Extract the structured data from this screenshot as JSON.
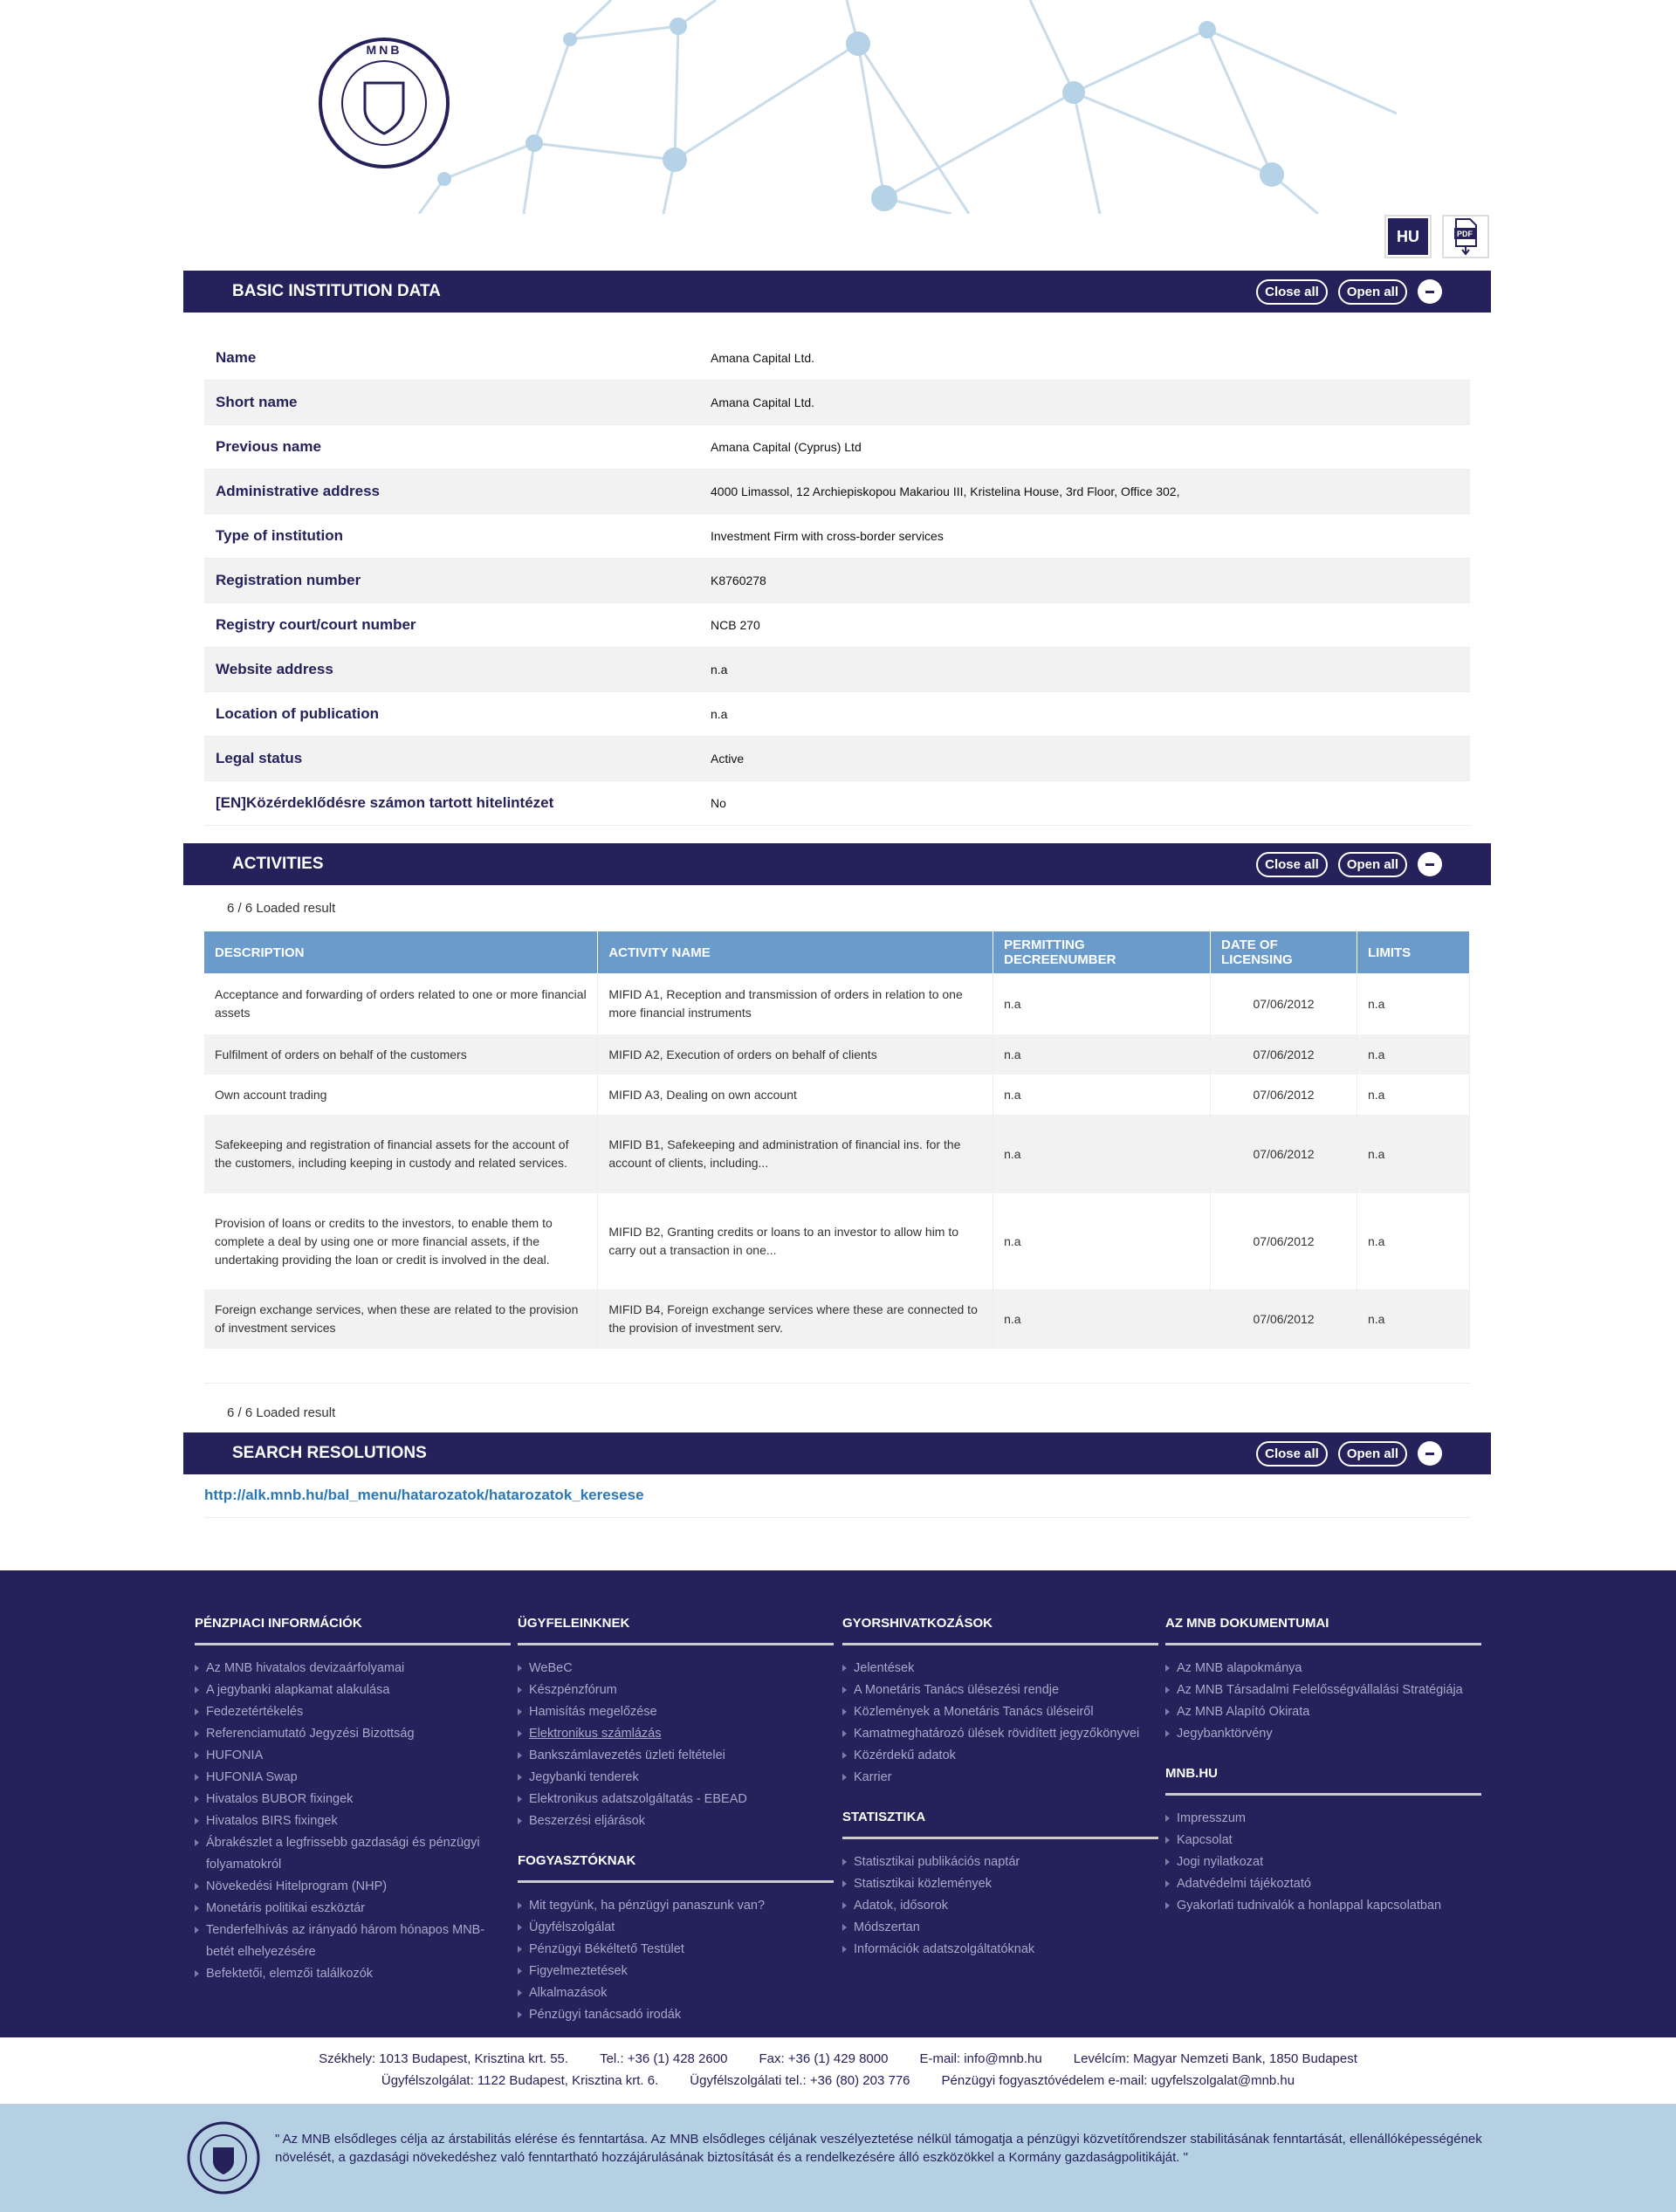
{
  "header": {
    "logo_text": "MAGYAR NEMZETI BANK",
    "lang_button": "HU",
    "pdf_icon": "pdf-download-icon",
    "pdf_label": "PDF"
  },
  "colors": {
    "navy": "#25215a",
    "table_header": "#6b9bcb",
    "band": "#b4d0e2",
    "link": "#2b78b8"
  },
  "basic": {
    "title": "BASIC INSTITUTION DATA",
    "close_all": "Close all",
    "open_all": "Open all",
    "rows": [
      {
        "label": "Name",
        "value": "Amana Capital Ltd."
      },
      {
        "label": "Short name",
        "value": "Amana Capital Ltd."
      },
      {
        "label": "Previous name",
        "value": "Amana Capital (Cyprus) Ltd"
      },
      {
        "label": "Administrative address",
        "value": "4000 Limassol, 12 Archiepiskopou Makariou III, Kristelina House, 3rd Floor, Office 302,"
      },
      {
        "label": "Type of institution",
        "value": "Investment Firm with cross-border services"
      },
      {
        "label": "Registration number",
        "value": "K8760278"
      },
      {
        "label": "Registry court/court number",
        "value": "NCB 270"
      },
      {
        "label": "Website address",
        "value": "n.a"
      },
      {
        "label": "Location of publication",
        "value": "n.a"
      },
      {
        "label": "Legal status",
        "value": "Active"
      },
      {
        "label": "[EN]Közérdeklődésre számon tartott hitelintézet",
        "value": "No"
      }
    ]
  },
  "activities": {
    "title": "ACTIVITIES",
    "close_all": "Close all",
    "open_all": "Open all",
    "loaded": "6 / 6 Loaded result",
    "columns": [
      "DESCRIPTION",
      "ACTIVITY NAME",
      "PERMITTING DECREENUMBER",
      "DATE OF LICENSING",
      "LIMITS"
    ],
    "rows": [
      [
        "Acceptance and forwarding of orders related to one or more financial assets",
        "MIFID A1, Reception and transmission of orders in relation to one more financial instruments",
        "n.a",
        "07/06/2012",
        "n.a"
      ],
      [
        "Fulfilment of orders on behalf of the customers",
        "MIFID A2, Execution of orders on behalf of clients",
        "n.a",
        "07/06/2012",
        "n.a"
      ],
      [
        "Own account trading",
        "MIFID A3, Dealing on own account",
        "n.a",
        "07/06/2012",
        "n.a"
      ],
      [
        "Safekeeping and registration of financial assets for the account of the customers, including keeping in custody and related services.",
        "MIFID B1, Safekeeping and administration of financial ins. for the account of clients, including...",
        "n.a",
        "07/06/2012",
        "n.a"
      ],
      [
        "Provision of loans or credits to the investors, to enable them to complete a deal by using one or more financial assets, if the undertaking providing the loan or credit is involved in the deal.",
        "MIFID B2, Granting credits or loans to an investor to allow him to carry out a transaction in one...",
        "n.a",
        "07/06/2012",
        "n.a"
      ],
      [
        "Foreign exchange services, when these are related to the provision of investment services",
        "MIFID B4, Foreign exchange services where these are connected to the provision of investment serv.",
        "n.a",
        "07/06/2012",
        "n.a"
      ]
    ]
  },
  "search": {
    "title": "SEARCH RESOLUTIONS",
    "close_all": "Close all",
    "open_all": "Open all",
    "link": "http://alk.mnb.hu/bal_menu/hatarozatok/hatarozatok_keresese"
  },
  "footer": {
    "columns": [
      [
        {
          "heading": "PÉNZPIACI INFORMÁCIÓK",
          "items": [
            "Az MNB hivatalos devizaárfolyamai",
            "A jegybanki alapkamat alakulása",
            "Fedezetértékelés",
            "Referenciamutató Jegyzési Bizottság",
            "HUFONIA",
            "HUFONIA Swap",
            "Hivatalos BUBOR fixingek",
            "Hivatalos BIRS fixingek",
            "Ábrakészlet a legfrissebb gazdasági és pénzügyi folyamatokról",
            "Növekedési Hitelprogram (NHP)",
            "Monetáris politikai eszköztár",
            "Tenderfelhívás az irányadó három hónapos MNB-betét elhelyezésére",
            "Befektetői, elemzői találkozók"
          ]
        }
      ],
      [
        {
          "heading": "ÜGYFELEINKNEK",
          "items": [
            "WeBeC",
            "Készpénzfórum",
            "Hamisítás megelőzése",
            "Elektronikus számlázás",
            "Bankszámlavezetés üzleti feltételei",
            "Jegybanki tenderek",
            "Elektronikus adatszolgáltatás - EBEAD",
            "Beszerzési eljárások"
          ]
        },
        {
          "heading": "FOGYASZTÓKNAK",
          "items": [
            "Mit tegyünk, ha pénzügyi panaszunk van?",
            "Ügyfélszolgálat",
            "Pénzügyi Békéltető Testület",
            "Figyelmeztetések",
            "Alkalmazások",
            "Pénzügyi tanácsadó irodák"
          ]
        }
      ],
      [
        {
          "heading": "GYORSHIVATKOZÁSOK",
          "items": [
            "Jelentések",
            "A Monetáris Tanács ülésezési rendje",
            "Közlemények a Monetáris Tanács üléseiről",
            "Kamatmeghatározó ülések rövidített jegyzőkönyvei",
            "Közérdekű adatok",
            "Karrier"
          ]
        },
        {
          "heading": "STATISZTIKA",
          "items": [
            "Statisztikai publikációs naptár",
            "Statisztikai közlemények",
            "Adatok, idősorok",
            "Módszertan",
            "Információk adatszolgáltatóknak"
          ]
        }
      ],
      [
        {
          "heading": "AZ MNB DOKUMENTUMAI",
          "items": [
            "Az MNB alapokmánya",
            "Az MNB Társadalmi Felelősségvállalási Stratégiája",
            "Az MNB Alapító Okirata",
            "Jegybanktörvény"
          ]
        },
        {
          "heading": "MNB.HU",
          "items": [
            "Impresszum",
            "Kapcsolat",
            "Jogi nyilatkozat",
            "Adatvédelmi tájékoztató",
            "Gyakorlati tudnivalók a honlappal kapcsolatban"
          ]
        }
      ]
    ],
    "address_line1": [
      "Székhely: 1013 Budapest, Krisztina krt. 55.",
      "Tel.: +36 (1) 428 2600",
      "Fax: +36 (1) 429 8000",
      "E-mail: info@mnb.hu",
      "Levélcím: Magyar Nemzeti Bank, 1850 Budapest"
    ],
    "address_line2": [
      "Ügyfélszolgálat: 1122 Budapest, Krisztina krt. 6.",
      "Ügyfélszolgálati tel.: +36 (80) 203 776",
      "Pénzügyi fogyasztóvédelem e-mail: ugyfelszolgalat@mnb.hu"
    ],
    "quote": "\" Az MNB elsődleges célja az árstabilitás elérése és fenntartása. Az MNB elsődleges céljának veszélyeztetése nélkül támogatja a pénzügyi közvetítőrendszer stabilitásának fenntartását, ellenállóképességének növelését, a gazdasági növekedéshez való fenntartható hozzájárulásának biztosítását és a rendelkezésére álló eszközökkel a Kormány gazdaságpolitikáját. \""
  }
}
